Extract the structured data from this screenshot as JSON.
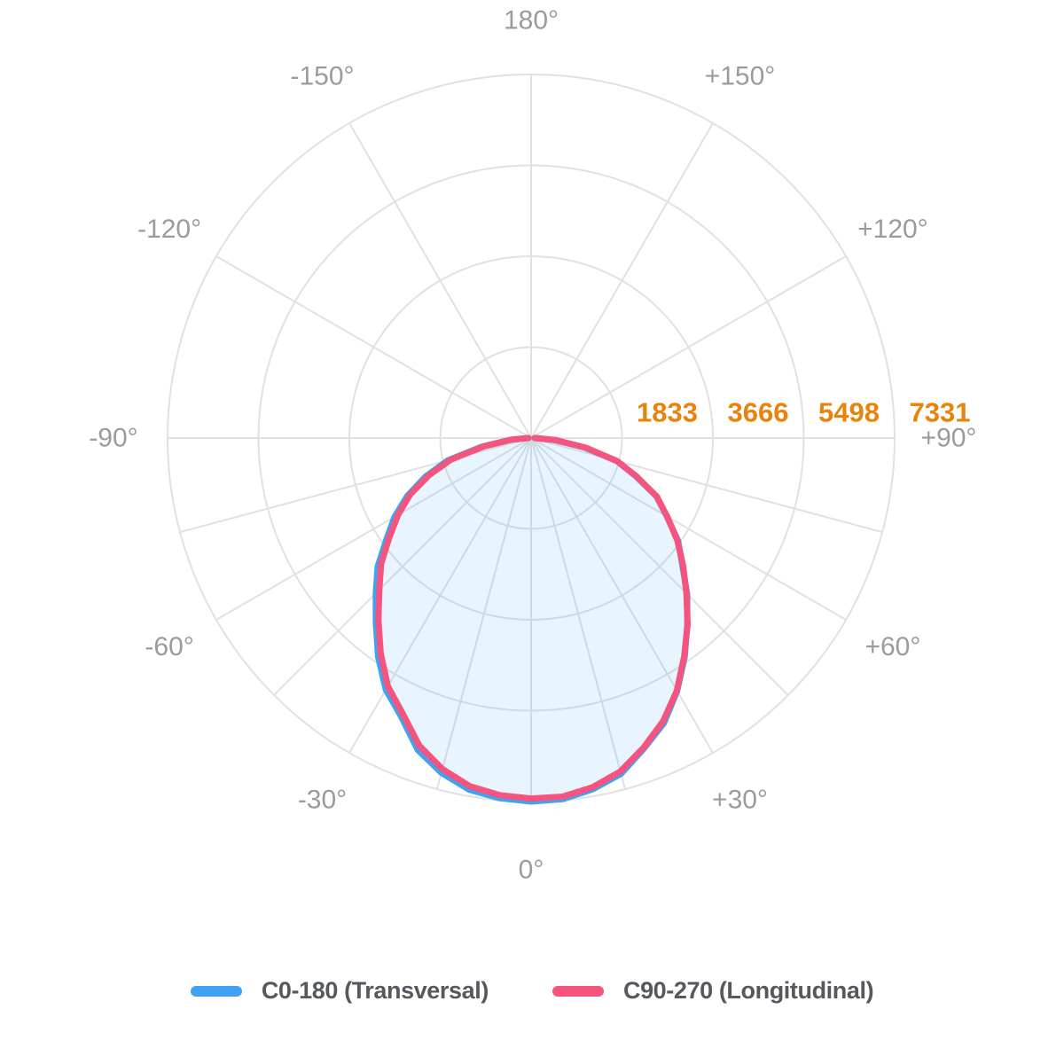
{
  "chart_data": {
    "type": "line",
    "subtype": "polar-photometric",
    "title": "",
    "angle_zero_position": "bottom",
    "background": "#FFFFFF",
    "grid": {
      "color": "#E1E1E1",
      "stroke_width": 2,
      "rings": 4,
      "spoke_angles": [
        0,
        15,
        30,
        45,
        60,
        75,
        90,
        -15,
        -30,
        -45,
        -60,
        -75,
        -90,
        120,
        150,
        180,
        -120,
        -150
      ],
      "lower_hemisphere_spoke_step_deg": 15,
      "upper_hemisphere_spoke_step_deg": 30
    },
    "radial_axis": {
      "min": 0,
      "max": 7331,
      "ticks": [
        1833,
        3666,
        5498,
        7331
      ],
      "tick_labels": [
        "1833",
        "3666",
        "5498",
        "7331"
      ],
      "tick_label_color": "#E8830C"
    },
    "angle_axis": {
      "label_color": "#9B9B9B",
      "labels": [
        {
          "angle": 180,
          "label": "180°"
        },
        {
          "angle": -150,
          "label": "-150°"
        },
        {
          "angle": 150,
          "label": "+150°"
        },
        {
          "angle": -120,
          "label": "-120°"
        },
        {
          "angle": 120,
          "label": "+120°"
        },
        {
          "angle": -90,
          "label": "-90°"
        },
        {
          "angle": 90,
          "label": "+90°"
        },
        {
          "angle": -60,
          "label": "-60°"
        },
        {
          "angle": 60,
          "label": "+60°"
        },
        {
          "angle": -30,
          "label": "-30°"
        },
        {
          "angle": 30,
          "label": "+30°"
        },
        {
          "angle": 0,
          "label": "0°"
        }
      ]
    },
    "series": [
      {
        "name": "C0-180 (Transversal)",
        "color": "#3FA2F2",
        "fill": "rgba(66,165,245,0.12)",
        "points": [
          [
            -90,
            60
          ],
          [
            -85,
            430
          ],
          [
            -80,
            1010
          ],
          [
            -75,
            1740
          ],
          [
            -70,
            2260
          ],
          [
            -65,
            2750
          ],
          [
            -60,
            3180
          ],
          [
            -55,
            3560
          ],
          [
            -50,
            4040
          ],
          [
            -45,
            4430
          ],
          [
            -40,
            4870
          ],
          [
            -35,
            5380
          ],
          [
            -30,
            5860
          ],
          [
            -25,
            6200
          ],
          [
            -20,
            6690
          ],
          [
            -15,
            6990
          ],
          [
            -10,
            7200
          ],
          [
            -5,
            7290
          ],
          [
            0,
            7331
          ],
          [
            5,
            7310
          ],
          [
            10,
            7190
          ],
          [
            15,
            7010
          ],
          [
            20,
            6660
          ],
          [
            25,
            6340
          ],
          [
            30,
            5890
          ],
          [
            35,
            5400
          ],
          [
            40,
            4900
          ],
          [
            45,
            4450
          ],
          [
            50,
            3980
          ],
          [
            55,
            3620
          ],
          [
            60,
            3160
          ],
          [
            65,
            2790
          ],
          [
            70,
            2240
          ],
          [
            75,
            1790
          ],
          [
            80,
            1090
          ],
          [
            85,
            480
          ],
          [
            90,
            70
          ]
        ]
      },
      {
        "name": "C90-270 (Longitudinal)",
        "color": "#F4547D",
        "fill": "none",
        "points": [
          [
            -90,
            50
          ],
          [
            -85,
            400
          ],
          [
            -80,
            960
          ],
          [
            -75,
            1670
          ],
          [
            -70,
            2190
          ],
          [
            -65,
            2690
          ],
          [
            -60,
            3100
          ],
          [
            -55,
            3490
          ],
          [
            -50,
            3950
          ],
          [
            -45,
            4330
          ],
          [
            -40,
            4790
          ],
          [
            -35,
            5290
          ],
          [
            -30,
            5780
          ],
          [
            -25,
            6130
          ],
          [
            -20,
            6600
          ],
          [
            -15,
            6910
          ],
          [
            -10,
            7130
          ],
          [
            -5,
            7230
          ],
          [
            0,
            7270
          ],
          [
            5,
            7260
          ],
          [
            10,
            7150
          ],
          [
            15,
            6960
          ],
          [
            20,
            6640
          ],
          [
            25,
            6300
          ],
          [
            30,
            5880
          ],
          [
            35,
            5380
          ],
          [
            40,
            4910
          ],
          [
            45,
            4430
          ],
          [
            50,
            4000
          ],
          [
            55,
            3600
          ],
          [
            60,
            3170
          ],
          [
            65,
            2800
          ],
          [
            70,
            2260
          ],
          [
            75,
            1800
          ],
          [
            80,
            1120
          ],
          [
            85,
            500
          ],
          [
            90,
            80
          ]
        ]
      }
    ]
  },
  "legend": {
    "items": [
      {
        "label": "C0-180 (Transversal)"
      },
      {
        "label": "C90-270 (Longitudinal)"
      }
    ]
  }
}
